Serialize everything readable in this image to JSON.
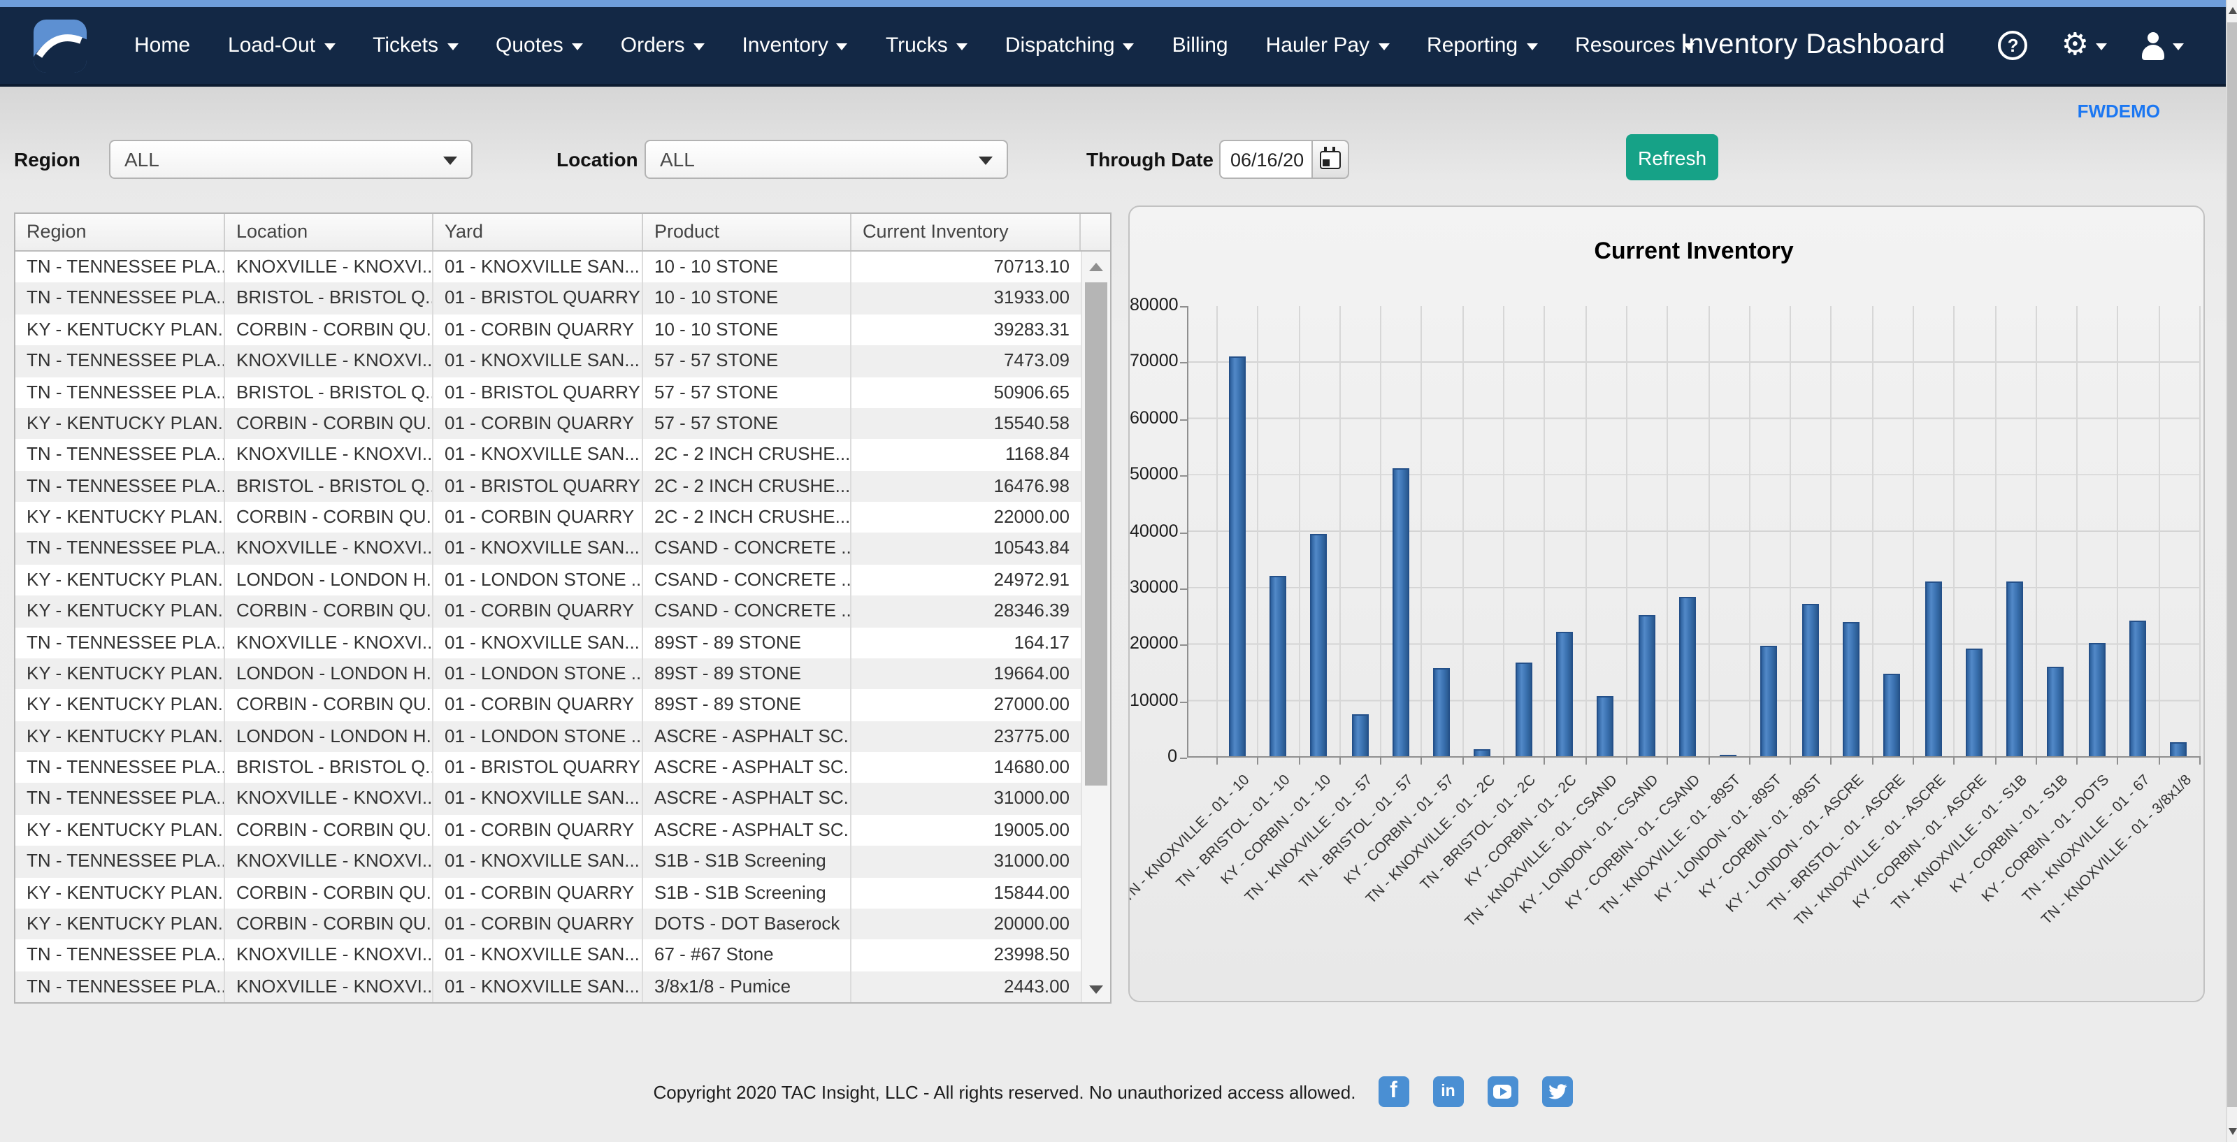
{
  "nav": {
    "title": "Inventory Dashboard",
    "menu": [
      {
        "label": "Home",
        "caret": false
      },
      {
        "label": "Load-Out",
        "caret": true
      },
      {
        "label": "Tickets",
        "caret": true
      },
      {
        "label": "Quotes",
        "caret": true
      },
      {
        "label": "Orders",
        "caret": true
      },
      {
        "label": "Inventory",
        "caret": true
      },
      {
        "label": "Trucks",
        "caret": true
      },
      {
        "label": "Dispatching",
        "caret": true
      },
      {
        "label": "Billing",
        "caret": false
      },
      {
        "label": "Hauler Pay",
        "caret": true
      },
      {
        "label": "Reporting",
        "caret": true
      },
      {
        "label": "Resources",
        "caret": true
      }
    ]
  },
  "account_label": "FWDEMO",
  "filters": {
    "region_label": "Region",
    "region_value": "ALL",
    "location_label": "Location",
    "location_value": "ALL",
    "through_date_label": "Through Date",
    "through_date_value": "06/16/20",
    "refresh_label": "Refresh"
  },
  "table": {
    "columns": [
      "Region",
      "Location",
      "Yard",
      "Product",
      "Current Inventory"
    ],
    "rows": [
      [
        "TN - TENNESSEE PLA...",
        "KNOXVILLE - KNOXVI...",
        "01 - KNOXVILLE SAN...",
        "10 - 10 STONE",
        "70713.10"
      ],
      [
        "TN - TENNESSEE PLA...",
        "BRISTOL - BRISTOL Q...",
        "01 - BRISTOL QUARRY",
        "10 - 10 STONE",
        "31933.00"
      ],
      [
        "KY - KENTUCKY PLAN...",
        "CORBIN - CORBIN QU...",
        "01 - CORBIN QUARRY",
        "10 - 10 STONE",
        "39283.31"
      ],
      [
        "TN - TENNESSEE PLA...",
        "KNOXVILLE - KNOXVI...",
        "01 - KNOXVILLE SAN...",
        "57 - 57 STONE",
        "7473.09"
      ],
      [
        "TN - TENNESSEE PLA...",
        "BRISTOL - BRISTOL Q...",
        "01 - BRISTOL QUARRY",
        "57 - 57 STONE",
        "50906.65"
      ],
      [
        "KY - KENTUCKY PLAN...",
        "CORBIN - CORBIN QU...",
        "01 - CORBIN QUARRY",
        "57 - 57 STONE",
        "15540.58"
      ],
      [
        "TN - TENNESSEE PLA...",
        "KNOXVILLE - KNOXVI...",
        "01 - KNOXVILLE SAN...",
        "2C - 2 INCH CRUSHE...",
        "1168.84"
      ],
      [
        "TN - TENNESSEE PLA...",
        "BRISTOL - BRISTOL Q...",
        "01 - BRISTOL QUARRY",
        "2C - 2 INCH CRUSHE...",
        "16476.98"
      ],
      [
        "KY - KENTUCKY PLAN...",
        "CORBIN - CORBIN QU...",
        "01 - CORBIN QUARRY",
        "2C - 2 INCH CRUSHE...",
        "22000.00"
      ],
      [
        "TN - TENNESSEE PLA...",
        "KNOXVILLE - KNOXVI...",
        "01 - KNOXVILLE SAN...",
        "CSAND - CONCRETE ...",
        "10543.84"
      ],
      [
        "KY - KENTUCKY PLAN...",
        "LONDON - LONDON H...",
        "01 - LONDON STONE ...",
        "CSAND - CONCRETE ...",
        "24972.91"
      ],
      [
        "KY - KENTUCKY PLAN...",
        "CORBIN - CORBIN QU...",
        "01 - CORBIN QUARRY",
        "CSAND - CONCRETE ...",
        "28346.39"
      ],
      [
        "TN - TENNESSEE PLA...",
        "KNOXVILLE - KNOXVI...",
        "01 - KNOXVILLE SAN...",
        "89ST - 89 STONE",
        "164.17"
      ],
      [
        "KY - KENTUCKY PLAN...",
        "LONDON - LONDON H...",
        "01 - LONDON STONE ...",
        "89ST - 89 STONE",
        "19664.00"
      ],
      [
        "KY - KENTUCKY PLAN...",
        "CORBIN - CORBIN QU...",
        "01 - CORBIN QUARRY",
        "89ST - 89 STONE",
        "27000.00"
      ],
      [
        "KY - KENTUCKY PLAN...",
        "LONDON - LONDON H...",
        "01 - LONDON STONE ...",
        "ASCRE - ASPHALT SC...",
        "23775.00"
      ],
      [
        "TN - TENNESSEE PLA...",
        "BRISTOL - BRISTOL Q...",
        "01 - BRISTOL QUARRY",
        "ASCRE - ASPHALT SC...",
        "14680.00"
      ],
      [
        "TN - TENNESSEE PLA...",
        "KNOXVILLE - KNOXVI...",
        "01 - KNOXVILLE SAN...",
        "ASCRE - ASPHALT SC...",
        "31000.00"
      ],
      [
        "KY - KENTUCKY PLAN...",
        "CORBIN - CORBIN QU...",
        "01 - CORBIN QUARRY",
        "ASCRE - ASPHALT SC...",
        "19005.00"
      ],
      [
        "TN - TENNESSEE PLA...",
        "KNOXVILLE - KNOXVI...",
        "01 - KNOXVILLE SAN...",
        "S1B - S1B Screening",
        "31000.00"
      ],
      [
        "KY - KENTUCKY PLAN...",
        "CORBIN - CORBIN QU...",
        "01 - CORBIN QUARRY",
        "S1B - S1B Screening",
        "15844.00"
      ],
      [
        "KY - KENTUCKY PLAN...",
        "CORBIN - CORBIN QU...",
        "01 - CORBIN QUARRY",
        "DOTS - DOT Baserock",
        "20000.00"
      ],
      [
        "TN - TENNESSEE PLA...",
        "KNOXVILLE - KNOXVI...",
        "01 - KNOXVILLE SAN...",
        "67 - #67 Stone",
        "23998.50"
      ],
      [
        "TN - TENNESSEE PLA...",
        "KNOXVILLE - KNOXVI...",
        "01 - KNOXVILLE SAN...",
        "3/8x1/8 - Pumice",
        "2443.00"
      ]
    ]
  },
  "chart_data": {
    "type": "bar",
    "title": "Current Inventory",
    "categories": [
      "TN - KNOXVILLE - 01 - 10",
      "TN - BRISTOL - 01 - 10",
      "KY - CORBIN - 01 - 10",
      "TN - KNOXVILLE - 01 - 57",
      "TN - BRISTOL - 01 - 57",
      "KY - CORBIN - 01 - 57",
      "TN - KNOXVILLE - 01 - 2C",
      "TN - BRISTOL - 01 - 2C",
      "KY - CORBIN - 01 - 2C",
      "TN - KNOXVILLE - 01 - CSAND",
      "KY - LONDON - 01 - CSAND",
      "KY - CORBIN - 01 - CSAND",
      "TN - KNOXVILLE - 01 - 89ST",
      "KY - LONDON - 01 - 89ST",
      "KY - CORBIN - 01 - 89ST",
      "KY - LONDON - 01 - ASCRE",
      "TN - BRISTOL - 01 - ASCRE",
      "TN - KNOXVILLE - 01 - ASCRE",
      "KY - CORBIN - 01 - ASCRE",
      "TN - KNOXVILLE - 01 - S1B",
      "KY - CORBIN - 01 - S1B",
      "KY - CORBIN - 01 - DOTS",
      "TN - KNOXVILLE - 01 - 67",
      "TN - KNOXVILLE - 01 - 3/8x1/8"
    ],
    "values": [
      70713.1,
      31933.0,
      39283.31,
      7473.09,
      50906.65,
      15540.58,
      1168.84,
      16476.98,
      22000.0,
      10543.84,
      24972.91,
      28346.39,
      164.17,
      19664.0,
      27000.0,
      23775.0,
      14680.0,
      31000.0,
      19005.0,
      31000.0,
      15844.0,
      20000.0,
      23998.5,
      2443.0
    ],
    "xlabel": "",
    "ylabel": "",
    "ylim": [
      0,
      80000
    ],
    "ytick_step": 10000,
    "grid": true,
    "legend": "none",
    "bar_color": "#3a71b0",
    "xlabel_rotation": -45
  },
  "footer": {
    "copyright": "Copyright 2020 TAC Insight, LLC - All rights reserved. No unauthorized access allowed.",
    "social": [
      "facebook",
      "linkedin",
      "youtube",
      "twitter"
    ]
  }
}
